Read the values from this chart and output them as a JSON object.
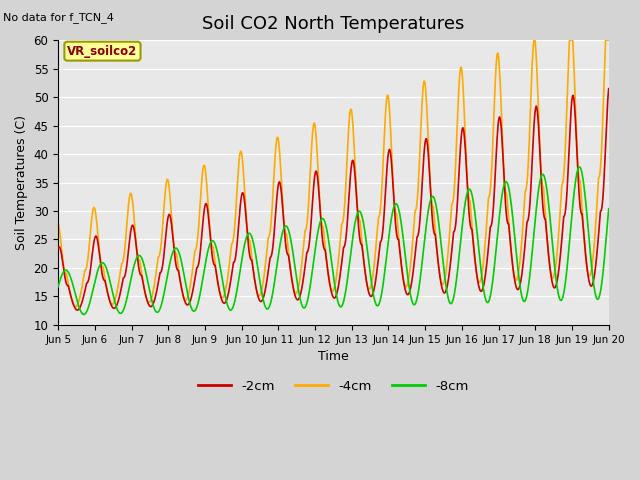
{
  "title": "Soil CO2 North Temperatures",
  "subtitle": "No data for f_TCN_4",
  "xlabel": "Time",
  "ylabel": "Soil Temperatures (C)",
  "ylim": [
    10,
    60
  ],
  "xlim": [
    0,
    15
  ],
  "fig_bg_color": "#d4d4d4",
  "plot_bg_color": "#e8e8e8",
  "legend_label": "VR_soilco2",
  "series_labels": [
    "-2cm",
    "-4cm",
    "-8cm"
  ],
  "series_colors": [
    "#cc0000",
    "#ffaa00",
    "#00cc00"
  ],
  "xtick_labels": [
    "Jun 5",
    "Jun 6",
    "Jun 7",
    "Jun 8",
    "Jun 9",
    "Jun 10",
    "Jun 11",
    "Jun 12",
    "Jun 13",
    "Jun 14",
    "Jun 15",
    "Jun 16",
    "Jun 17",
    "Jun 18",
    "Jun 19",
    "Jun 20"
  ],
  "title_fontsize": 13,
  "axis_fontsize": 9
}
